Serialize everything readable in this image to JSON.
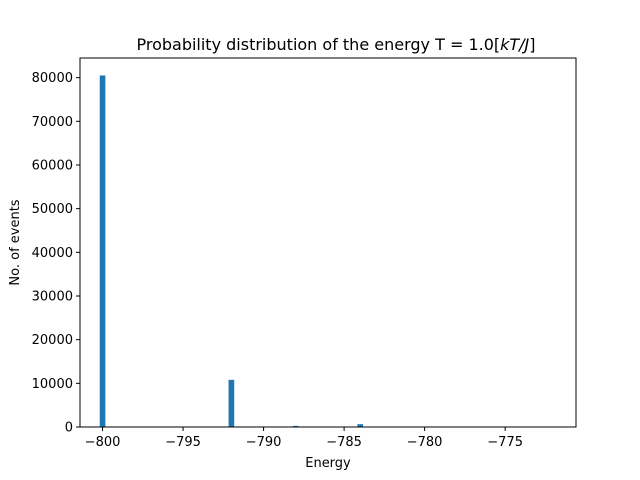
{
  "chart_data": {
    "type": "bar",
    "title_main": "Probability distribution of the energy T = 1.0[",
    "title_italic": "kT/J",
    "title_end": "]",
    "xlabel": "Energy",
    "ylabel": "No. of events",
    "xlim": [
      -801.4,
      -770.6
    ],
    "ylim": [
      0,
      84500
    ],
    "xticks": [
      -800,
      -795,
      -790,
      -785,
      -780,
      -775
    ],
    "xtick_labels": [
      "−800",
      "−795",
      "−790",
      "−785",
      "−780",
      "−775"
    ],
    "yticks": [
      0,
      10000,
      20000,
      30000,
      40000,
      50000,
      60000,
      70000,
      80000
    ],
    "ytick_labels": [
      "0",
      "10000",
      "20000",
      "30000",
      "40000",
      "50000",
      "60000",
      "70000",
      "80000"
    ],
    "bin_width": 0.35,
    "bars": [
      {
        "x": -800,
        "value": 80500
      },
      {
        "x": -792,
        "value": 10800
      },
      {
        "x": -788,
        "value": 250
      },
      {
        "x": -784,
        "value": 650
      }
    ],
    "bar_color": "#1f77b4",
    "grid": false,
    "legend": "none"
  }
}
